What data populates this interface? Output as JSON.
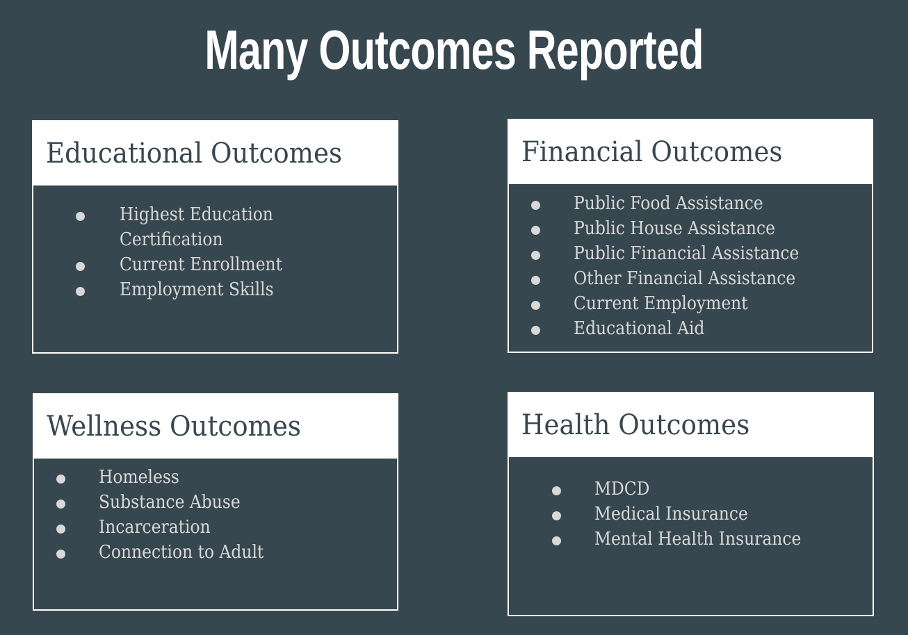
{
  "title": "Many Outcomes Reported",
  "cards": [
    {
      "title": "Educational Outcomes",
      "items": [
        "Highest Education Certification",
        "Current Enrollment",
        "Employment Skills"
      ]
    },
    {
      "title": "Financial Outcomes",
      "items": [
        "Public Food Assistance",
        "Public House Assistance",
        "Public Financial Assistance",
        "Other Financial Assistance",
        "Current Employment",
        "Educational Aid"
      ]
    },
    {
      "title": "Wellness Outcomes",
      "items": [
        "Homeless",
        "Substance Abuse",
        "Incarceration",
        "Connection to Adult"
      ]
    },
    {
      "title": "Health Outcomes",
      "items": [
        "MDCD",
        "Medical Insurance",
        "Mental Health Insurance"
      ]
    }
  ],
  "colors": {
    "background": "#37474f",
    "header_bg": "#ffffff",
    "header_text": "#37474f",
    "item_text": "#d8d8d8"
  }
}
